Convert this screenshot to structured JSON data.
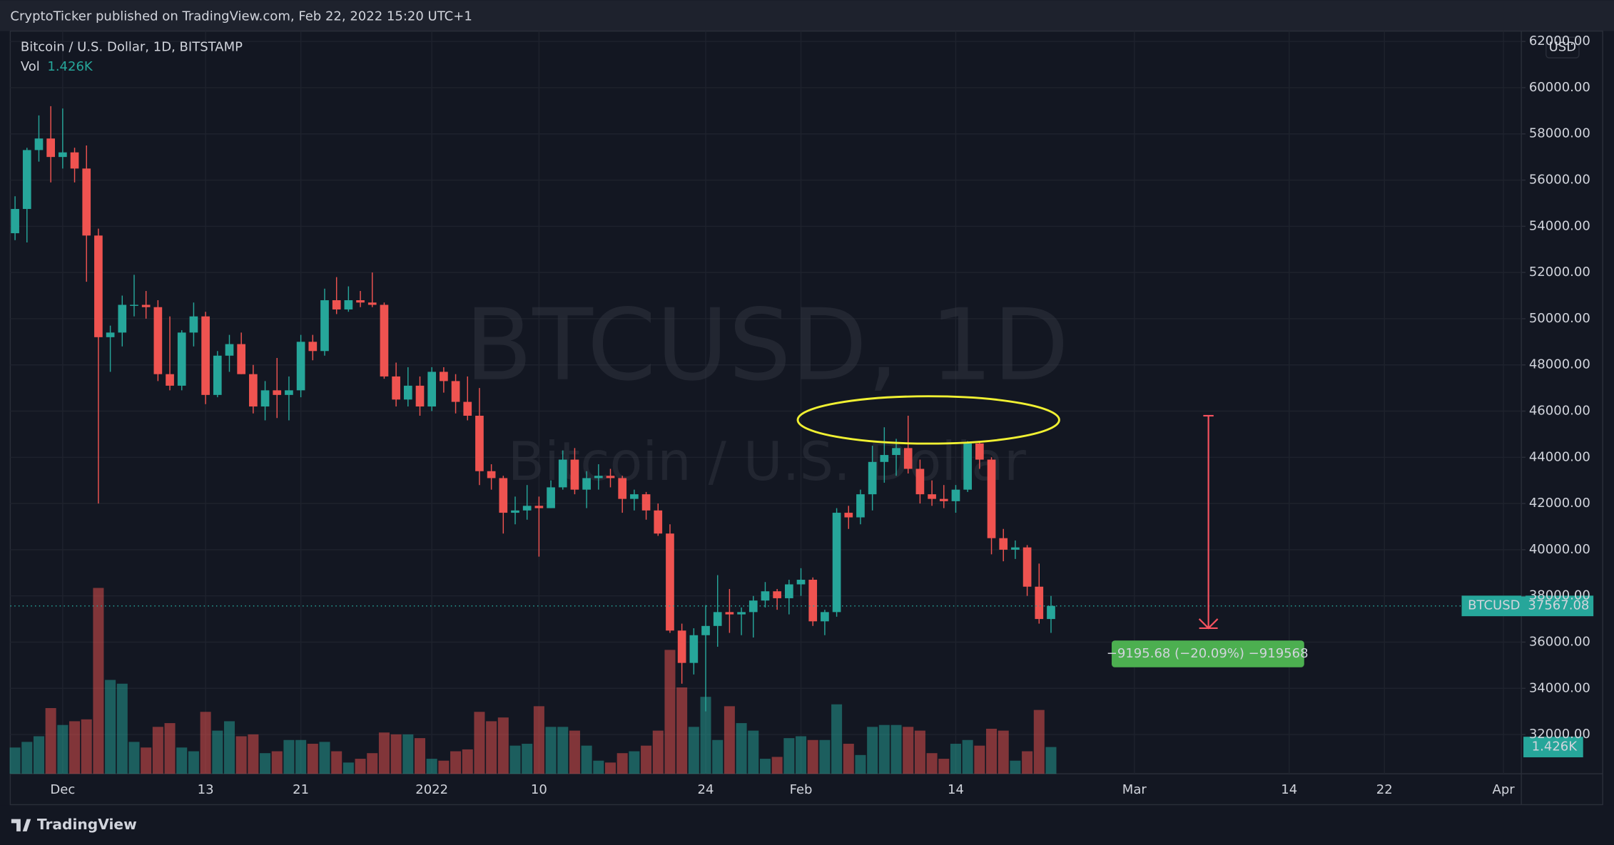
{
  "header": {
    "published": "CryptoTicker published on TradingView.com, Feb 22, 2022 15:20 UTC+1",
    "logo": "TradingView"
  },
  "chart_data": {
    "type": "candlestick",
    "title": "Bitcoin / U.S. Dollar, 1D, BITSTAMP",
    "watermark": "BTCUSD, 1D",
    "watermark_subtitle": "Bitcoin / U.S. Dollar",
    "currency": "USD",
    "volume_title": "Vol",
    "volume_last_label": "1.426K",
    "symbol": "BTCUSD",
    "last_price": 37567.08,
    "up_color": "#26a69a",
    "down_color": "#ef5350",
    "open": [
      53700,
      54750,
      57300,
      57800,
      57000,
      57200,
      56500,
      53600,
      49200,
      49400,
      50600,
      50600,
      50500,
      47600,
      47100,
      49400,
      50100,
      46700,
      48400,
      48900,
      47600,
      46200,
      46900,
      46700,
      46900,
      49000,
      48600,
      50800,
      50400,
      50800,
      50700,
      50600,
      47500,
      46500,
      47100,
      46200,
      47700,
      47300,
      46400,
      45800,
      43400,
      43100,
      41600,
      41700,
      41900,
      41800,
      42700,
      43900,
      42600,
      43100,
      43200,
      43100,
      42200,
      42400,
      41700,
      40700,
      36500,
      35100,
      36300,
      36700,
      37300,
      37200,
      37300,
      37800,
      38200,
      37900,
      38500,
      38700,
      36900,
      37300,
      41600,
      41400,
      42400,
      43800,
      44100,
      44400,
      43500,
      42400,
      42200,
      42100,
      42600,
      44600,
      43900,
      40500,
      40000,
      40100,
      38400,
      37000
    ],
    "high": [
      55300,
      57400,
      58800,
      59200,
      59100,
      57400,
      57500,
      53900,
      49700,
      51000,
      51900,
      51200,
      50800,
      50100,
      49500,
      50700,
      50300,
      48600,
      49300,
      49400,
      48000,
      47300,
      48300,
      47500,
      49300,
      49300,
      51300,
      51800,
      51400,
      51200,
      52000,
      50700,
      48100,
      47900,
      47500,
      47900,
      47900,
      47600,
      47500,
      47000,
      43700,
      43200,
      42300,
      42800,
      42300,
      43000,
      44300,
      44400,
      43400,
      43700,
      43500,
      43200,
      42600,
      42500,
      42000,
      41100,
      36800,
      36600,
      37600,
      38900,
      38300,
      37500,
      38000,
      38600,
      38300,
      38700,
      39200,
      38800,
      37400,
      41800,
      41900,
      42600,
      44500,
      45300,
      44800,
      45800,
      43900,
      43000,
      42800,
      42800,
      44700,
      44700,
      44000,
      40900,
      40400,
      40200,
      39400,
      38000
    ],
    "low": [
      53400,
      53300,
      56800,
      55900,
      56500,
      55900,
      51600,
      42000,
      47700,
      48800,
      50100,
      50000,
      47300,
      46900,
      46900,
      48800,
      46300,
      46600,
      47700,
      47600,
      45900,
      45600,
      45700,
      45600,
      46600,
      48200,
      48400,
      50200,
      50300,
      50500,
      50500,
      47400,
      46200,
      46200,
      45800,
      46000,
      46800,
      45900,
      45600,
      42800,
      42600,
      40700,
      41100,
      41300,
      39700,
      41800,
      42600,
      42400,
      41800,
      42600,
      42700,
      41600,
      41700,
      41300,
      40600,
      36400,
      34200,
      34600,
      33000,
      35800,
      36400,
      36300,
      36200,
      37500,
      37400,
      37200,
      38000,
      36700,
      36300,
      37100,
      40900,
      41100,
      41700,
      42900,
      43200,
      43300,
      42000,
      41900,
      41800,
      41600,
      42500,
      43500,
      39800,
      39500,
      39600,
      38000,
      36800,
      36400
    ],
    "close": [
      54750,
      57300,
      57800,
      57000,
      57200,
      56500,
      53600,
      49200,
      49400,
      50600,
      50600,
      50500,
      47600,
      47100,
      49400,
      50100,
      46700,
      48400,
      48900,
      47600,
      46200,
      46900,
      46700,
      46900,
      49000,
      48600,
      50800,
      50400,
      50800,
      50700,
      50600,
      47500,
      46500,
      47100,
      46200,
      47700,
      47300,
      46400,
      45800,
      43400,
      43100,
      41600,
      41700,
      41900,
      41800,
      42700,
      43900,
      42600,
      43100,
      43200,
      43100,
      42200,
      42400,
      41700,
      40700,
      36500,
      35100,
      36300,
      36700,
      37300,
      37200,
      37300,
      37800,
      38200,
      37900,
      38500,
      38700,
      36900,
      37300,
      41600,
      41400,
      42400,
      43800,
      44100,
      44400,
      43500,
      42400,
      42200,
      42100,
      42600,
      44600,
      43900,
      40500,
      40000,
      40100,
      38400,
      37000,
      37567.08
    ],
    "volume": [
      1400,
      1700,
      2000,
      3500,
      2600,
      2800,
      2900,
      9900,
      5000,
      4800,
      1700,
      1400,
      2500,
      2700,
      1400,
      1200,
      3300,
      2300,
      2800,
      2000,
      2100,
      1100,
      1200,
      1800,
      1800,
      1600,
      1700,
      1200,
      600,
      800,
      1100,
      2200,
      2100,
      2100,
      1900,
      800,
      700,
      1200,
      1300,
      3300,
      2800,
      3000,
      1500,
      1600,
      3600,
      2500,
      2500,
      2300,
      1500,
      700,
      600,
      1100,
      1200,
      1500,
      2300,
      6600,
      4600,
      2500,
      4100,
      1800,
      3600,
      2700,
      2300,
      800,
      900,
      1900,
      2000,
      1800,
      1800,
      3700,
      1600,
      1000,
      2500,
      2600,
      2600,
      2500,
      2300,
      1100,
      800,
      1600,
      1800,
      1500,
      2400,
      2300,
      700,
      1200,
      3400,
      1426
    ],
    "volume_lim": [
      0,
      12000
    ],
    "xlim": [
      -0.4,
      126.5
    ],
    "xticks": [
      {
        "value": 4,
        "label": "Dec"
      },
      {
        "value": 16,
        "label": "13"
      },
      {
        "value": 24,
        "label": "21"
      },
      {
        "value": 35,
        "label": "2022"
      },
      {
        "value": 44,
        "label": "10"
      },
      {
        "value": 58,
        "label": "24"
      },
      {
        "value": 66,
        "label": "Feb"
      },
      {
        "value": 79,
        "label": "14"
      },
      {
        "value": 94,
        "label": "Mar"
      },
      {
        "value": 107,
        "label": "14"
      },
      {
        "value": 115,
        "label": "22"
      },
      {
        "value": 125,
        "label": "Apr"
      }
    ],
    "ylim": [
      30300,
      62450
    ],
    "yticks": [
      {
        "value": 32000,
        "label": "32000.00"
      },
      {
        "value": 34000,
        "label": "34000.00"
      },
      {
        "value": 36000,
        "label": "36000.00"
      },
      {
        "value": 38000,
        "label": "38000.00"
      },
      {
        "value": 40000,
        "label": "40000.00"
      },
      {
        "value": 42000,
        "label": "42000.00"
      },
      {
        "value": 44000,
        "label": "44000.00"
      },
      {
        "value": 46000,
        "label": "46000.00"
      },
      {
        "value": 48000,
        "label": "48000.00"
      },
      {
        "value": 50000,
        "label": "50000.00"
      },
      {
        "value": 52000,
        "label": "52000.00"
      },
      {
        "value": 54000,
        "label": "54000.00"
      },
      {
        "value": 56000,
        "label": "56000.00"
      },
      {
        "value": 58000,
        "label": "58000.00"
      },
      {
        "value": 60000,
        "label": "60000.00"
      },
      {
        "value": 62000,
        "label": "62000.00"
      }
    ],
    "grid": true,
    "measure": {
      "from": 45800,
      "to": 36604.32,
      "label": "−9195.68 (−20.09%) −919568",
      "color": "#f7525f",
      "label_color": "#4caf50"
    }
  }
}
